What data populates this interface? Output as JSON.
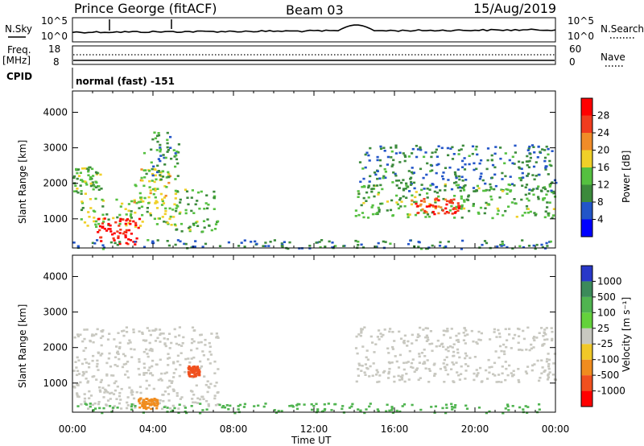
{
  "header": {
    "station": "Prince George (fitACF)",
    "beam": "Beam 03",
    "date": "15/Aug/2019"
  },
  "noise_panel": {
    "left_label": "N.Sky",
    "right_label": "N.Search",
    "left_ticks": [
      "10^5",
      "10^0"
    ],
    "right_ticks": [
      "10^5",
      "10^0"
    ]
  },
  "freq_panel": {
    "left_label_1": "Freq.",
    "left_label_2": "[MHz]",
    "right_label": "Nave",
    "left_ticks": [
      "18",
      "8"
    ],
    "right_ticks": [
      "60",
      "0"
    ]
  },
  "cpid_panel": {
    "label": "CPID",
    "text": "normal (fast) -151"
  },
  "power_panel": {
    "ylabel": "Slant Range [km]",
    "cbar_label": "Power [dB]",
    "cbar_ticks": [
      "28",
      "24",
      "20",
      "16",
      "12",
      "8",
      "4"
    ]
  },
  "velocity_panel": {
    "ylabel": "Slant Range [km]",
    "cbar_label": "Velocity [m s⁻¹]",
    "cbar_ticks": [
      "1000",
      "500",
      "100",
      "25",
      "-25",
      "-100",
      "-500",
      "-1000"
    ]
  },
  "xaxis": {
    "label": "Time UT",
    "ticks": [
      "00:00",
      "04:00",
      "08:00",
      "12:00",
      "16:00",
      "20:00",
      "00:00"
    ]
  },
  "colors": {
    "power_scale": [
      "#0000ff",
      "#2355c8",
      "#3c8a3c",
      "#55c040",
      "#f0d028",
      "#f08c28",
      "#f03c1e",
      "#ff0000"
    ],
    "velocity_scale": [
      "#2838c8",
      "#3c8a5a",
      "#50b450",
      "#64d23c",
      "#c8c8c0",
      "#f0c828",
      "#f08c1e",
      "#f0501e",
      "#ff0000"
    ]
  },
  "chart_data": [
    {
      "type": "heatmap",
      "title": "Prince George (fitACF) Beam 03 15/Aug/2019",
      "quantity": "Power [dB]",
      "xlabel": "Time UT",
      "ylabel": "Slant Range [km]",
      "x_range_hours": [
        0,
        24
      ],
      "y_range_km": [
        180,
        4600
      ],
      "y_ticks": [
        1000,
        2000,
        3000,
        4000
      ],
      "color_range": [
        0,
        30
      ],
      "echo_regions": [
        {
          "t": [
            0.0,
            1.4
          ],
          "r": [
            1700,
            2500
          ],
          "v": 12
        },
        {
          "t": [
            0.3,
            5.5
          ],
          "r": [
            800,
            1600
          ],
          "v": 14
        },
        {
          "t": [
            1.2,
            3.3
          ],
          "r": [
            300,
            1050
          ],
          "v": 28
        },
        {
          "t": [
            3.0,
            4.8
          ],
          "r": [
            1450,
            2450
          ],
          "v": 16
        },
        {
          "t": [
            3.5,
            5.3
          ],
          "r": [
            2100,
            3500
          ],
          "v": 10
        },
        {
          "t": [
            5.0,
            7.2
          ],
          "r": [
            650,
            1900
          ],
          "v": 12
        },
        {
          "t": [
            0.0,
            13.6
          ],
          "r": [
            180,
            430
          ],
          "v": 8
        },
        {
          "t": [
            14.0,
            24.0
          ],
          "r": [
            180,
            430
          ],
          "v": 8
        },
        {
          "t": [
            14.0,
            24.0
          ],
          "r": [
            1050,
            2000
          ],
          "v": 12
        },
        {
          "t": [
            16.8,
            19.2
          ],
          "r": [
            1150,
            1600
          ],
          "v": 24
        },
        {
          "t": [
            14.2,
            24.0
          ],
          "r": [
            1800,
            3100
          ],
          "v": 8
        }
      ]
    },
    {
      "type": "heatmap",
      "quantity": "Velocity [m s-1]",
      "xlabel": "Time UT",
      "ylabel": "Slant Range [km]",
      "x_range_hours": [
        0,
        24
      ],
      "y_range_km": [
        180,
        4600
      ],
      "y_ticks": [
        1000,
        2000,
        3000,
        4000
      ],
      "color_levels": [
        1000,
        500,
        100,
        25,
        -25,
        -100,
        -500,
        -1000
      ],
      "echo_regions": [
        {
          "t": [
            0.0,
            7.2
          ],
          "r": [
            300,
            2600
          ],
          "v": 0
        },
        {
          "t": [
            5.7,
            6.3
          ],
          "r": [
            1200,
            1500
          ],
          "v": -300
        },
        {
          "t": [
            3.2,
            4.2
          ],
          "r": [
            300,
            600
          ],
          "v": -150
        },
        {
          "t": [
            0.0,
            24.0
          ],
          "r": [
            180,
            450
          ],
          "v": 60
        },
        {
          "t": [
            14.0,
            24.0
          ],
          "r": [
            1050,
            2600
          ],
          "v": 0
        }
      ]
    }
  ]
}
